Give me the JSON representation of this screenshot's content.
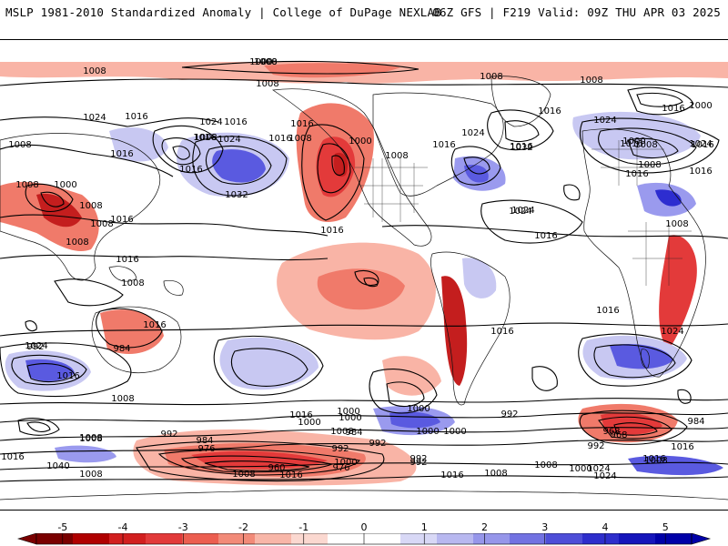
{
  "header": {
    "title_left": "MSLP 1981-2010 Standardized Anomaly | College of DuPage NEXLAB",
    "title_right": "06Z GFS | F219 Valid: 09Z THU APR 03 2025"
  },
  "colors": {
    "neg3": "#c41e1e",
    "neg2": "#e33a3a",
    "neg1": "#f07a6a",
    "neg05": "#f9b4a6",
    "pos05": "#c8c8f2",
    "pos1": "#9a9aee",
    "pos2": "#5a5ae0",
    "pos3": "#2d2dd0",
    "contour": "#000000",
    "land_outline": "#111111"
  },
  "colorbar": {
    "ticks": [
      "-5",
      "-4",
      "-3",
      "-2",
      "-1",
      "0",
      "1",
      "2",
      "3",
      "4",
      "5"
    ],
    "colors": [
      "#7a0000",
      "#b00000",
      "#d21f1f",
      "#e23a3a",
      "#ec5e50",
      "#f28a78",
      "#f8b6a8",
      "#fbd8d0",
      "#ffffff",
      "#ffffff",
      "#d8d8f6",
      "#b8b8f0",
      "#9696ea",
      "#7272e2",
      "#4e4ed8",
      "#2e2ecc",
      "#1616bb",
      "#0000a8"
    ]
  },
  "contour_labels": [
    "1000",
    "1008",
    "1000",
    "1008",
    "1008",
    "1008",
    "1000",
    "1016",
    "1016",
    "1024",
    "1016",
    "1016",
    "1008",
    "1000",
    "1016",
    "1016",
    "1016",
    "1024",
    "1032",
    "1024",
    "1008",
    "1008",
    "1016",
    "1000",
    "1008",
    "1016",
    "1016",
    "1024",
    "1016",
    "1032",
    "1024",
    "1016",
    "1016",
    "1000",
    "1008",
    "1008",
    "1016",
    "1024",
    "1016",
    "1016",
    "1008",
    "1008",
    "1008",
    "1008",
    "1016",
    "1016",
    "1016",
    "1008",
    "1024",
    "1024",
    "1016",
    "1016",
    "1024",
    "1008",
    "1016",
    "992",
    "984",
    "1008",
    "1016",
    "1024",
    "1000",
    "1000",
    "1016",
    "1000",
    "984",
    "992",
    "1008",
    "992",
    "984",
    "976",
    "968",
    "992",
    "1000",
    "1016",
    "1008",
    "1000",
    "992",
    "1008",
    "1040",
    "1016",
    "1008",
    "1000",
    "992",
    "976",
    "960",
    "992",
    "968",
    "1016",
    "1008",
    "1024",
    "1016",
    "1024",
    "1008",
    "1000",
    "1008",
    "1016",
    "1008",
    "992",
    "984",
    "1000",
    "1008"
  ]
}
